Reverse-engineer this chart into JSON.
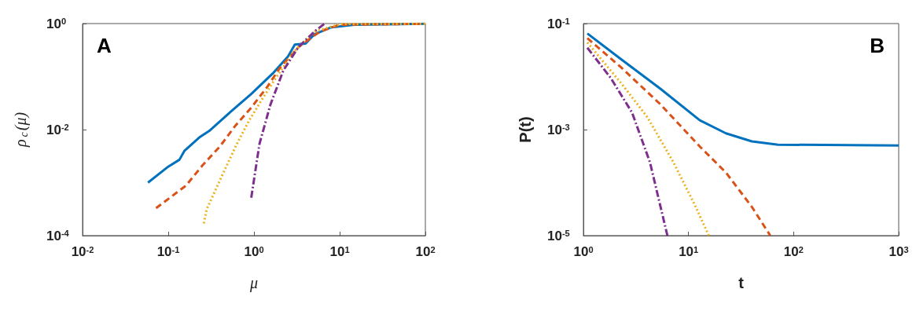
{
  "chart_data": [
    {
      "type": "line",
      "xlabel": "μ",
      "ylabel": "ρ$_{c}$(μ)",
      "annotations": [
        "A"
      ],
      "log": "xy",
      "grid": false,
      "xlim": [
        0.01,
        100
      ],
      "ylim": [
        0.0001,
        1
      ],
      "xticks": [
        {
          "value": 0.01,
          "label": "10$^{-2}$"
        },
        {
          "value": 0.1,
          "label": "10$^{-1}$"
        },
        {
          "value": 1,
          "label": "10$^{0}$"
        },
        {
          "value": 10,
          "label": "10$^{1}$"
        },
        {
          "value": 100,
          "label": "10$^{2}$"
        }
      ],
      "yticks": [
        {
          "value": 0.0001,
          "label": "10$^{-4}$"
        },
        {
          "value": 0.01,
          "label": "10$^{-2}$"
        },
        {
          "value": 1,
          "label": "10$^{0}$"
        }
      ],
      "series": [
        {
          "color": "#0072bd",
          "line_style": "solid",
          "x": [
            0.058,
            0.1,
            0.135,
            0.155,
            0.23,
            0.3,
            0.54,
            0.93,
            1.66,
            2.5,
            3.0,
            4.0,
            5.1,
            7.8,
            14.8,
            100
          ],
          "values": [
            0.001,
            0.002,
            0.0027,
            0.004,
            0.0071,
            0.0094,
            0.022,
            0.047,
            0.115,
            0.24,
            0.4,
            0.42,
            0.63,
            0.84,
            0.95,
            0.99
          ]
        },
        {
          "color": "#d95319",
          "line_style": "dashed",
          "x": [
            0.072,
            0.16,
            0.25,
            0.4,
            0.61,
            0.93,
            1.44,
            2.0,
            3.3,
            5.9,
            10,
            100
          ],
          "values": [
            0.00033,
            0.00087,
            0.0021,
            0.0048,
            0.012,
            0.026,
            0.065,
            0.145,
            0.36,
            0.71,
            0.95,
            0.99
          ]
        },
        {
          "color": "#edb120",
          "line_style": "dotted",
          "x": [
            0.26,
            0.28,
            0.4,
            0.61,
            0.88,
            1.24,
            1.78,
            2.9,
            5.1,
            10.2,
            100
          ],
          "values": [
            0.00017,
            0.00031,
            0.0011,
            0.0048,
            0.015,
            0.037,
            0.092,
            0.29,
            0.71,
            0.98,
            0.99
          ]
        },
        {
          "color": "#7e2f8e",
          "line_style": "dashdot",
          "x": [
            0.93,
            1.16,
            1.55,
            2.2,
            3.3,
            5.1,
            6.7
          ],
          "values": [
            0.00052,
            0.0054,
            0.029,
            0.13,
            0.36,
            0.71,
            1.0
          ]
        }
      ]
    },
    {
      "type": "line",
      "xlabel": "t",
      "ylabel": "P(t)",
      "annotations": [
        "B"
      ],
      "log": "xy",
      "grid": false,
      "xlim": [
        1,
        1000
      ],
      "ylim": [
        1e-05,
        0.1
      ],
      "xticks": [
        {
          "value": 1,
          "label": "10$^{0}$"
        },
        {
          "value": 10,
          "label": "10$^{1}$"
        },
        {
          "value": 100,
          "label": "10$^{2}$"
        },
        {
          "value": 1000,
          "label": "10$^{3}$"
        }
      ],
      "yticks": [
        {
          "value": 1e-05,
          "label": "10$^{-5}$"
        },
        {
          "value": 0.001,
          "label": "10$^{-3}$"
        },
        {
          "value": 0.1,
          "label": "10$^{-1}$"
        }
      ],
      "series": [
        {
          "color": "#0072bd",
          "line_style": "solid",
          "x": [
            1.09,
            2.3,
            5.4,
            12.8,
            22.7,
            40,
            71,
            1000
          ],
          "values": [
            0.065,
            0.021,
            0.0059,
            0.0015,
            0.00085,
            0.0006,
            0.00052,
            0.0005
          ]
        },
        {
          "color": "#d95319",
          "line_style": "dashed",
          "x": [
            1.09,
            2.3,
            5.4,
            12.8,
            22.7,
            40,
            60
          ],
          "values": [
            0.053,
            0.0147,
            0.003,
            0.00048,
            0.000155,
            3.5e-05,
            1e-05
          ]
        },
        {
          "color": "#edb120",
          "line_style": "dotted",
          "x": [
            1.09,
            2.3,
            4.07,
            7.2,
            11.4,
            15.6
          ],
          "values": [
            0.044,
            0.0074,
            0.0017,
            0.00024,
            3.9e-05,
            1e-05
          ]
        },
        {
          "color": "#7e2f8e",
          "line_style": "dashdot",
          "x": [
            1.09,
            1.82,
            2.9,
            4.3,
            6.3
          ],
          "values": [
            0.035,
            0.0094,
            0.0021,
            0.00024,
            1e-05
          ]
        }
      ]
    }
  ]
}
